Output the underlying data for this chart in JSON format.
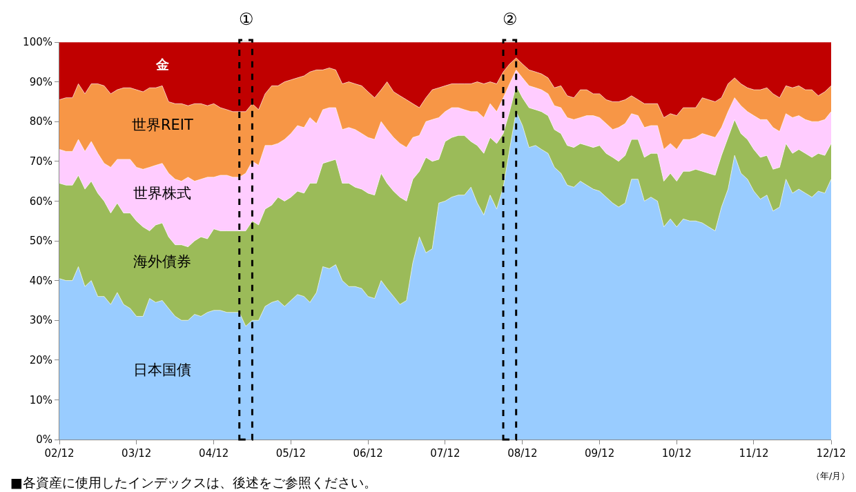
{
  "chart_data": {
    "type": "area",
    "stacked": true,
    "legend": false,
    "x": [
      "2002-12",
      "2003-01",
      "2003-02",
      "2003-03",
      "2003-04",
      "2003-05",
      "2003-06",
      "2003-07",
      "2003-08",
      "2003-09",
      "2003-10",
      "2003-11",
      "2003-12",
      "2004-01",
      "2004-02",
      "2004-03",
      "2004-04",
      "2004-05",
      "2004-06",
      "2004-07",
      "2004-08",
      "2004-09",
      "2004-10",
      "2004-11",
      "2004-12",
      "2005-01",
      "2005-02",
      "2005-03",
      "2005-04",
      "2005-05",
      "2005-06",
      "2005-07",
      "2005-08",
      "2005-09",
      "2005-10",
      "2005-11",
      "2005-12",
      "2006-01",
      "2006-02",
      "2006-03",
      "2006-04",
      "2006-05",
      "2006-06",
      "2006-07",
      "2006-08",
      "2006-09",
      "2006-10",
      "2006-11",
      "2006-12",
      "2007-01",
      "2007-02",
      "2007-03",
      "2007-04",
      "2007-05",
      "2007-06",
      "2007-07",
      "2007-08",
      "2007-09",
      "2007-10",
      "2007-11",
      "2007-12",
      "2008-01",
      "2008-02",
      "2008-03",
      "2008-04",
      "2008-05",
      "2008-06",
      "2008-07",
      "2008-08",
      "2008-09",
      "2008-10",
      "2008-11",
      "2008-12",
      "2009-01",
      "2009-02",
      "2009-03",
      "2009-04",
      "2009-05",
      "2009-06",
      "2009-07",
      "2009-08",
      "2009-09",
      "2009-10",
      "2009-11",
      "2009-12",
      "2010-01",
      "2010-02",
      "2010-03",
      "2010-04",
      "2010-05",
      "2010-06",
      "2010-07",
      "2010-08",
      "2010-09",
      "2010-10",
      "2010-11",
      "2010-12",
      "2011-01",
      "2011-02",
      "2011-03",
      "2011-04",
      "2011-05",
      "2011-06",
      "2011-07",
      "2011-08",
      "2011-09",
      "2011-10",
      "2011-11",
      "2011-12",
      "2012-01",
      "2012-02",
      "2012-03",
      "2012-04",
      "2012-05",
      "2012-06",
      "2012-07",
      "2012-08",
      "2012-09",
      "2012-10",
      "2012-11",
      "2012-12"
    ],
    "xlim": [
      "2002-12",
      "2012-12"
    ],
    "xticks": [
      {
        "value": "2002-12",
        "label": "02/12"
      },
      {
        "value": "2003-12",
        "label": "03/12"
      },
      {
        "value": "2004-12",
        "label": "04/12"
      },
      {
        "value": "2005-12",
        "label": "05/12"
      },
      {
        "value": "2006-12",
        "label": "06/12"
      },
      {
        "value": "2007-12",
        "label": "07/12"
      },
      {
        "value": "2008-12",
        "label": "08/12"
      },
      {
        "value": "2009-12",
        "label": "09/12"
      },
      {
        "value": "2010-12",
        "label": "10/12"
      },
      {
        "value": "2011-12",
        "label": "11/12"
      },
      {
        "value": "2012-12",
        "label": "12/12"
      }
    ],
    "ylim": [
      0,
      100
    ],
    "yticks": [
      {
        "value": 0,
        "label": "0%"
      },
      {
        "value": 10,
        "label": "10%"
      },
      {
        "value": 20,
        "label": "20%"
      },
      {
        "value": 30,
        "label": "30%"
      },
      {
        "value": 40,
        "label": "40%"
      },
      {
        "value": 50,
        "label": "50%"
      },
      {
        "value": 60,
        "label": "60%"
      },
      {
        "value": 70,
        "label": "70%"
      },
      {
        "value": 80,
        "label": "80%"
      },
      {
        "value": 90,
        "label": "90%"
      },
      {
        "value": 100,
        "label": "100%"
      }
    ],
    "series": [
      {
        "name": "日本国債",
        "color": "#99ccff",
        "values": [
          40.5,
          40,
          40,
          43.5,
          38.5,
          40,
          36,
          36,
          34,
          37,
          34,
          33,
          31,
          31,
          35.5,
          34.5,
          35,
          33,
          31,
          30,
          30,
          31.5,
          31,
          32,
          32.5,
          32.5,
          32,
          32,
          32,
          28.5,
          30,
          30,
          33.5,
          34.5,
          35,
          33.5,
          35,
          36.5,
          36,
          34.5,
          37,
          43.5,
          43,
          44,
          40,
          38.5,
          38.5,
          38,
          36,
          35.5,
          40,
          38,
          36,
          34,
          35,
          44.5,
          51,
          47,
          48,
          59.5,
          60,
          61,
          61.5,
          61.5,
          63.5,
          59.5,
          56.5,
          61.5,
          58,
          63.5,
          73,
          82.5,
          79,
          73.5,
          74,
          73,
          72,
          68.5,
          67,
          64,
          63.5,
          65,
          64,
          63,
          62.5,
          61,
          59.5,
          58.5,
          59.5,
          65.5,
          65.5,
          60,
          61,
          60,
          53.5,
          55.5,
          53.5,
          55.5,
          55,
          55,
          54.5,
          53.5,
          52.5,
          58.5,
          63,
          71.5,
          67,
          65.5,
          62.5,
          60.5,
          61.5,
          57.5,
          58.5,
          65.5,
          62,
          63,
          62,
          61,
          62.5,
          62,
          65.5
        ]
      },
      {
        "name": "海外債券",
        "color": "#9bbb59",
        "values": [
          24,
          24,
          24,
          23,
          24.5,
          25,
          26,
          24,
          23,
          22.5,
          23,
          24,
          24,
          22.5,
          17,
          19.5,
          19.5,
          18,
          18,
          19,
          18.5,
          18.5,
          20,
          18.5,
          20.5,
          20,
          20.5,
          20.5,
          20.5,
          24,
          25,
          24,
          24.5,
          24.5,
          26,
          26.5,
          26,
          26,
          26,
          30,
          27.5,
          26,
          27,
          26.5,
          24.5,
          26,
          25,
          25,
          26,
          26,
          27,
          26.5,
          26.5,
          27,
          25,
          21,
          16.5,
          24,
          22,
          11,
          15,
          15,
          15,
          15,
          11.5,
          14.5,
          15.5,
          14.5,
          16.5,
          13.5,
          9.5,
          6.5,
          7,
          10,
          9,
          9.5,
          9.5,
          9.5,
          10,
          10,
          10,
          9.5,
          10,
          10.5,
          11.5,
          11,
          11.5,
          11.5,
          12,
          10,
          10,
          11,
          11,
          12,
          11.5,
          11.5,
          11.5,
          12,
          12.5,
          13,
          13,
          13.5,
          14,
          13,
          13,
          9,
          10,
          10,
          10.5,
          10.5,
          10,
          10.5,
          10,
          9,
          10,
          10,
          10,
          10,
          9.5,
          9.5,
          9
        ]
      },
      {
        "name": "世界株式",
        "color": "#ffccff",
        "values": [
          8.5,
          8.5,
          8.5,
          9,
          9.5,
          10,
          10,
          9.5,
          11.5,
          11,
          13.5,
          13.5,
          13.5,
          14.5,
          16,
          15,
          15,
          16,
          16.5,
          16,
          17.5,
          15,
          14.5,
          15.5,
          13,
          14,
          14,
          13.5,
          13.5,
          14.5,
          15,
          15,
          16,
          15,
          13.5,
          15.5,
          16,
          16.5,
          16.5,
          16.5,
          15,
          13.5,
          13.5,
          13,
          13.5,
          14,
          14.5,
          14,
          14,
          14,
          13,
          13.5,
          13.5,
          13.5,
          13.5,
          10.5,
          9,
          9,
          10.5,
          10.5,
          7.5,
          7.5,
          7,
          6.5,
          7.5,
          8.5,
          9,
          8.5,
          8,
          9,
          7,
          4,
          5,
          5.5,
          5.5,
          5.5,
          5.5,
          6,
          6.5,
          7,
          7,
          6.5,
          7.5,
          8,
          7,
          7.5,
          7,
          8.5,
          8,
          6.5,
          6,
          7.5,
          7,
          7,
          8,
          7.5,
          8,
          8,
          8,
          8,
          9.5,
          9.5,
          9.5,
          7,
          6.5,
          5.5,
          7,
          7,
          8.5,
          9.5,
          9,
          10.5,
          9,
          7.5,
          9,
          8.5,
          8.5,
          9,
          8,
          9,
          8
        ]
      },
      {
        "name": "世界REIT",
        "color": "#f79646",
        "values": [
          12.5,
          13.5,
          13.5,
          14,
          14.5,
          14.5,
          17.5,
          19.5,
          18.5,
          17.5,
          18,
          18,
          19.5,
          19.5,
          20,
          19.5,
          19.5,
          18,
          19,
          19.5,
          18,
          19.5,
          19,
          18,
          18.5,
          17,
          16.5,
          16.5,
          16.5,
          15.5,
          14.5,
          14,
          13,
          15,
          14.5,
          14.5,
          13.5,
          12,
          13,
          11.5,
          13.5,
          10,
          10,
          9.5,
          11.5,
          11.5,
          11.5,
          12,
          11.5,
          10.5,
          8,
          12,
          11.5,
          12,
          12,
          8.5,
          7,
          6,
          7.5,
          7.5,
          6.5,
          6,
          6,
          6.5,
          7,
          7.5,
          8.5,
          5.5,
          7,
          6.5,
          5,
          3,
          3.5,
          4,
          4,
          4,
          4,
          4.5,
          5.5,
          5.5,
          5.5,
          7,
          6.5,
          5.5,
          6,
          6,
          7,
          6.5,
          6,
          4.5,
          4,
          6,
          5.5,
          5.5,
          8,
          7.5,
          8.5,
          8,
          8,
          7.5,
          9,
          9,
          9,
          7.5,
          7,
          5,
          5.5,
          6,
          6.5,
          7.5,
          8,
          8.5,
          8.5,
          7,
          7.5,
          7.5,
          7.5,
          8,
          6.5,
          7,
          6.5
        ]
      },
      {
        "name": "金",
        "color": "#c00000",
        "values": [
          14.5,
          14,
          14,
          10.5,
          13,
          10.5,
          10.5,
          11,
          13,
          12,
          11.5,
          11.5,
          12,
          12.5,
          11.5,
          11.5,
          11,
          15,
          15.5,
          15.5,
          16,
          15.5,
          15.5,
          16,
          15.5,
          16.5,
          17,
          17.5,
          17.5,
          17.5,
          15.5,
          17,
          13,
          11,
          11,
          10,
          9.5,
          9,
          8.5,
          7.5,
          7,
          7,
          6.5,
          7,
          10.5,
          10,
          10.5,
          11,
          12.5,
          14,
          12,
          10,
          12.5,
          13.5,
          14.5,
          15.5,
          16.5,
          14,
          12,
          11.5,
          11,
          10.5,
          10.5,
          10.5,
          10.5,
          10,
          10.5,
          10,
          10.5,
          7.5,
          5.5,
          4,
          5.5,
          7,
          7.5,
          8,
          9,
          11.5,
          11,
          13.5,
          14,
          12,
          12,
          13,
          13,
          14.5,
          15,
          15,
          14.5,
          13.5,
          14.5,
          15.5,
          15.5,
          15.5,
          19,
          18,
          18.5,
          16.5,
          16.5,
          16.5,
          14,
          14.5,
          15,
          14,
          10.5,
          9,
          10.5,
          11.5,
          12,
          12,
          11.5,
          13,
          14,
          11,
          11.5,
          11,
          12,
          12,
          13.5,
          12.5,
          11
        ]
      }
    ],
    "bands": [
      {
        "axis": "x",
        "from": "2005-04",
        "to": "2005-06",
        "label": "①"
      },
      {
        "axis": "x",
        "from": "2008-09",
        "to": "2008-11",
        "label": "②"
      }
    ],
    "annotations": [
      "■各資産に使用したインデックスは、後述をご参照ください。",
      "（年/月）"
    ]
  }
}
